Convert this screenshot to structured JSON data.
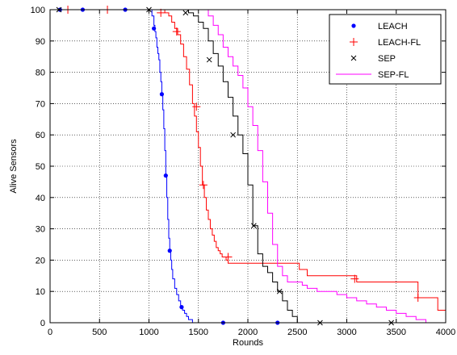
{
  "chart_data": {
    "type": "line",
    "title": "",
    "xlabel": "Rounds",
    "ylabel": "Alive Sensors",
    "xlim": [
      0,
      4000
    ],
    "ylim": [
      0,
      100
    ],
    "xticks": [
      "0",
      "500",
      "1000",
      "1500",
      "2000",
      "2500",
      "3000",
      "3500",
      "4000"
    ],
    "yticks": [
      "0",
      "10",
      "20",
      "30",
      "40",
      "50",
      "60",
      "70",
      "80",
      "90",
      "100"
    ],
    "grid": true,
    "legend_position": "top-right",
    "series": [
      {
        "name": "LEACH",
        "color": "#0000ff",
        "marker": "dot",
        "x": [
          0,
          1000,
          1030,
          1050,
          1060,
          1070,
          1080,
          1090,
          1100,
          1110,
          1120,
          1130,
          1140,
          1150,
          1160,
          1170,
          1180,
          1190,
          1200,
          1210,
          1220,
          1230,
          1240,
          1260,
          1280,
          1300,
          1320,
          1340,
          1360,
          1380,
          1400,
          1420,
          1440,
          4000
        ],
        "y": [
          100,
          100,
          98,
          95,
          93,
          91,
          88,
          86,
          84,
          80,
          77,
          73,
          68,
          62,
          55,
          47,
          40,
          33,
          27,
          23,
          20,
          17,
          14,
          11,
          9,
          7,
          5,
          4,
          3,
          2,
          1,
          1,
          0,
          0
        ],
        "marker_x": [
          100,
          330,
          760,
          1050,
          1130,
          1170,
          1210,
          1330,
          1750,
          2300
        ],
        "marker_y": [
          100,
          100,
          100,
          94,
          73,
          47,
          23,
          5,
          0,
          0
        ]
      },
      {
        "name": "LEACH-FL",
        "color": "#ff0000",
        "marker": "plus",
        "x": [
          0,
          1100,
          1160,
          1200,
          1230,
          1260,
          1290,
          1320,
          1350,
          1380,
          1410,
          1440,
          1460,
          1480,
          1500,
          1520,
          1540,
          1560,
          1580,
          1600,
          1620,
          1640,
          1660,
          1680,
          1700,
          1720,
          1740,
          1780,
          1800,
          1850,
          2500,
          2520,
          2600,
          3050,
          3100,
          3700,
          3720,
          3900,
          3920,
          4000
        ],
        "y": [
          100,
          100,
          99,
          98,
          96,
          94,
          92,
          89,
          85,
          81,
          76,
          70,
          66,
          61,
          56,
          50,
          44,
          40,
          36,
          33,
          30,
          28,
          26,
          24,
          23,
          22,
          21,
          20,
          19,
          19,
          19,
          17,
          15,
          15,
          13,
          13,
          8,
          8,
          4,
          4
        ],
        "marker_x": [
          180,
          580,
          1120,
          1280,
          1480,
          1550,
          1800,
          3080,
          3720
        ],
        "marker_y": [
          100,
          100,
          99,
          93,
          69,
          44,
          21,
          14,
          8
        ]
      },
      {
        "name": "SEP",
        "color": "#000000",
        "marker": "cross",
        "x": [
          0,
          1300,
          1400,
          1450,
          1500,
          1550,
          1600,
          1650,
          1700,
          1750,
          1800,
          1850,
          1900,
          1950,
          2000,
          2050,
          2100,
          2150,
          2200,
          2250,
          2300,
          2350,
          2400,
          2450,
          2500,
          4000
        ],
        "y": [
          100,
          100,
          99,
          98,
          96,
          94,
          90,
          86,
          82,
          77,
          72,
          66,
          60,
          54,
          44,
          31,
          22,
          18,
          16,
          13,
          10,
          7,
          4,
          2,
          0,
          0
        ],
        "marker_x": [
          90,
          1000,
          1370,
          1610,
          1850,
          2060,
          2320,
          2730,
          3450
        ],
        "marker_y": [
          100,
          100,
          99,
          84,
          60,
          31,
          10,
          0,
          0
        ]
      },
      {
        "name": "SEP-FL",
        "color": "#ff00ff",
        "marker": "none",
        "x": [
          0,
          1500,
          1600,
          1650,
          1700,
          1750,
          1800,
          1850,
          1900,
          1950,
          2000,
          2050,
          2100,
          2150,
          2200,
          2250,
          2300,
          2350,
          2400,
          2500,
          2550,
          2600,
          2700,
          2800,
          2900,
          3000,
          3100,
          3200,
          3300,
          3400,
          3500,
          3600,
          3700,
          3800,
          3900,
          4000
        ],
        "y": [
          100,
          100,
          98,
          95,
          92,
          88,
          85,
          82,
          79,
          75,
          69,
          63,
          55,
          45,
          35,
          25,
          18,
          15,
          13,
          13,
          12,
          11,
          10,
          10,
          9,
          8,
          7,
          6,
          5,
          4,
          3,
          2,
          1,
          0,
          0,
          0
        ]
      }
    ]
  }
}
